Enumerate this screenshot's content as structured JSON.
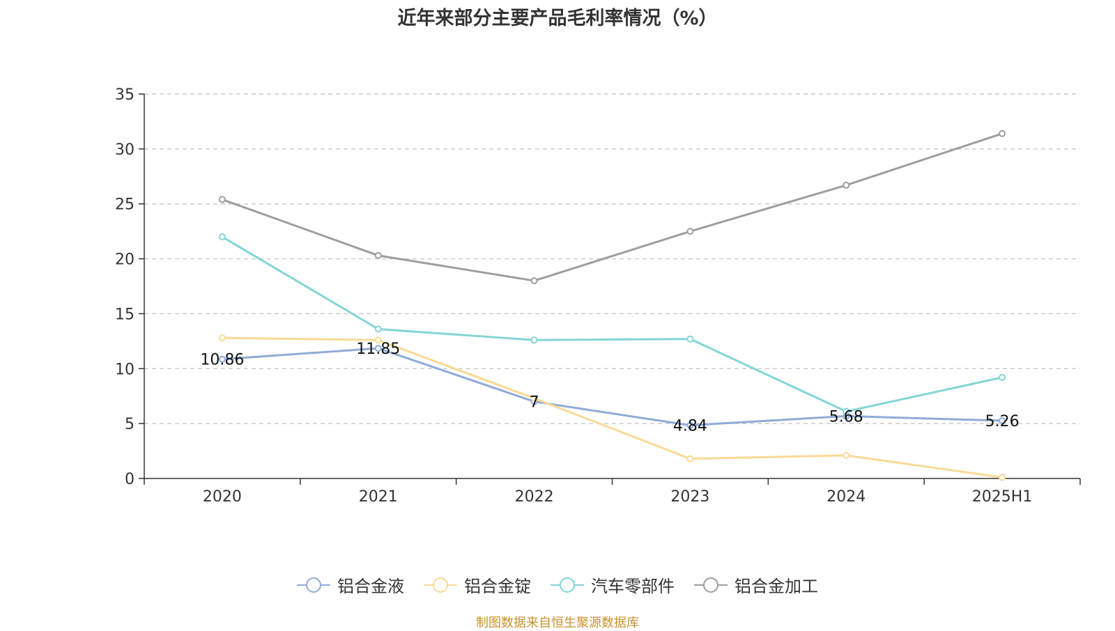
{
  "chart_data": {
    "type": "line",
    "title": "近年来部分主要产品毛利率情况（%）",
    "categories": [
      "2020",
      "2021",
      "2022",
      "2023",
      "2024",
      "2025H1"
    ],
    "ylim": [
      0,
      35
    ],
    "yticks": [
      "0",
      "5",
      "10",
      "15",
      "20",
      "25",
      "30",
      "35"
    ],
    "grid": true,
    "legend_position": "bottom",
    "series": [
      {
        "name": "铝合金液",
        "color": "#8fabd8",
        "values": [
          10.86,
          11.85,
          7,
          4.84,
          5.68,
          5.26
        ],
        "labels": [
          "10.86",
          "11.85",
          "7",
          "4.84",
          "5.68",
          "5.26"
        ]
      },
      {
        "name": "铝合金锭",
        "color": "#fad994",
        "values": [
          12.8,
          12.6,
          7.3,
          1.8,
          2.1,
          0.1
        ]
      },
      {
        "name": "汽车零部件",
        "color": "#84d5d5",
        "values": [
          22.0,
          13.6,
          12.6,
          12.7,
          6.1,
          9.2
        ]
      },
      {
        "name": "铝合金加工",
        "color": "#9e9e9e",
        "values": [
          25.4,
          20.3,
          18.0,
          22.5,
          26.7,
          31.4
        ]
      }
    ]
  },
  "footer": {
    "source": "制图数据来自恒生聚源数据库"
  }
}
